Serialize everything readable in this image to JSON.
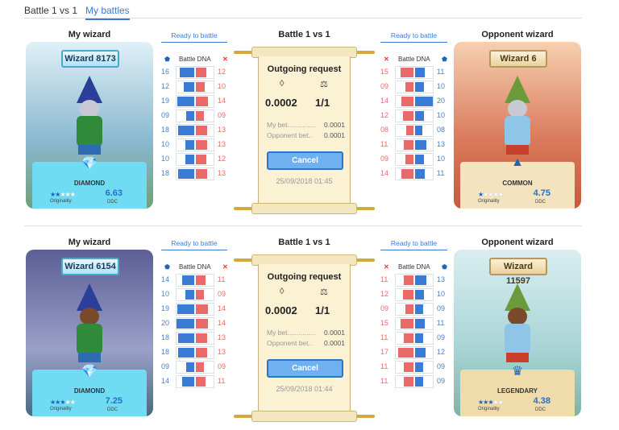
{
  "tabs": [
    {
      "label": "Battle 1 vs 1",
      "active": false
    },
    {
      "label": "My battles",
      "active": true
    }
  ],
  "colors": {
    "accent": "#3a7bd5",
    "mine": "#3a7bd5",
    "opponent": "#ea6a6a"
  },
  "battles": [
    {
      "my_title": "My wizard",
      "ready": "Ready to battle",
      "battle_title": "Battle 1 vs 1",
      "opp_ready": "Ready to battle",
      "opp_title": "Opponent wizard",
      "my_wizard": {
        "name": "Wizard 8173",
        "rarity": "DIAMOND",
        "rarity_icon": "diamond-icon",
        "stars": 2,
        "originality_label": "Originality",
        "ddc": "6.63",
        "ddc_label": "DDC",
        "theme": "blue"
      },
      "opp_wizard": {
        "name": "Wizard 6",
        "rarity": "COMMON",
        "rarity_icon": "wizard-hat-icon",
        "stars": 1,
        "originality_label": "Originality",
        "ddc": "4.75",
        "ddc_label": "DDC",
        "theme": "red"
      },
      "dna_label": "Battle DNA",
      "my_dna": [
        [
          16,
          12
        ],
        [
          12,
          10
        ],
        [
          19,
          14
        ],
        [
          9,
          9
        ],
        [
          18,
          13
        ],
        [
          10,
          13
        ],
        [
          10,
          12
        ],
        [
          18,
          13
        ]
      ],
      "opp_dna": [
        [
          15,
          11
        ],
        [
          9,
          10
        ],
        [
          14,
          20
        ],
        [
          12,
          10
        ],
        [
          8,
          8
        ],
        [
          11,
          13
        ],
        [
          9,
          10
        ],
        [
          14,
          11
        ]
      ],
      "request": {
        "title": "Outgoing request",
        "total": "0.0002",
        "ratio": "1/1",
        "my_bet_label": "My bet...............",
        "my_bet": "0.0001",
        "opp_bet_label": "Opponent bet..",
        "opp_bet": "0.0001",
        "cancel": "Cancel",
        "date": "25/09/2018 01:45"
      }
    },
    {
      "my_title": "My wizard",
      "ready": "Ready to battle",
      "battle_title": "Battle 1 vs 1",
      "opp_ready": "Ready to battle",
      "opp_title": "Opponent wizard",
      "my_wizard": {
        "name": "Wizard 6154",
        "rarity": "DIAMOND",
        "rarity_icon": "diamond-icon",
        "stars": 3,
        "originality_label": "Originality",
        "ddc": "7.25",
        "ddc_label": "DDC",
        "theme": "purple"
      },
      "opp_wizard": {
        "name": "Wizard 11597",
        "rarity": "LEGENDARY",
        "rarity_icon": "crown-icon",
        "stars": 3,
        "originality_label": "Originality",
        "ddc": "4.38",
        "ddc_label": "DDC",
        "theme": "teal"
      },
      "dna_label": "Battle DNA",
      "my_dna": [
        [
          14,
          11
        ],
        [
          10,
          9
        ],
        [
          19,
          14
        ],
        [
          20,
          14
        ],
        [
          18,
          13
        ],
        [
          18,
          13
        ],
        [
          9,
          9
        ],
        [
          14,
          11
        ]
      ],
      "opp_dna": [
        [
          11,
          13
        ],
        [
          12,
          10
        ],
        [
          9,
          9
        ],
        [
          15,
          11
        ],
        [
          11,
          9
        ],
        [
          17,
          12
        ],
        [
          11,
          9
        ],
        [
          11,
          9
        ]
      ],
      "request": {
        "title": "Outgoing request",
        "total": "0.0002",
        "ratio": "1/1",
        "my_bet_label": "My bet...............",
        "my_bet": "0.0001",
        "opp_bet_label": "Opponent bet..",
        "opp_bet": "0.0001",
        "cancel": "Cancel",
        "date": "25/09/2018 01:44"
      }
    }
  ]
}
